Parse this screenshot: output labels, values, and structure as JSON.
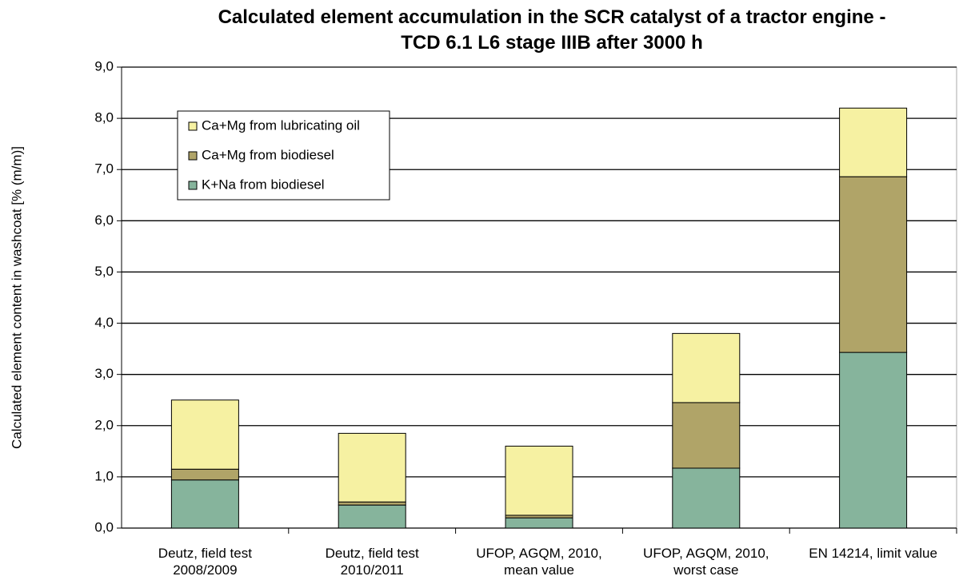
{
  "chart_data": {
    "type": "stacked-bar",
    "title": "Calculated element accumulation in the SCR catalyst of a tractor engine -\nTCD 6.1 L6 stage IIIB after 3000 h",
    "y_label": "Calculated element content in washcoat [% (m/m)]",
    "categories": [
      "Deutz, field test\n2008/2009",
      "Deutz, field test\n2010/2011",
      "UFOP, AGQM, 2010,\nmean value",
      "UFOP, AGQM, 2010,\nworst case",
      "EN 14214, limit value"
    ],
    "series": [
      {
        "name": "K+Na from biodiesel",
        "color": "#86b49c",
        "values": [
          0.94,
          0.45,
          0.2,
          1.17,
          3.43
        ]
      },
      {
        "name": "Ca+Mg from biodiesel",
        "color": "#b0a468",
        "values": [
          0.21,
          0.06,
          0.05,
          1.28,
          3.43
        ]
      },
      {
        "name": "Ca+Mg from lubricating oil",
        "color": "#f6f1a2",
        "values": [
          1.35,
          1.34,
          1.35,
          1.35,
          1.34
        ]
      }
    ],
    "ylim": [
      0,
      9
    ],
    "yticks": [
      {
        "value": 0,
        "label": "0,0"
      },
      {
        "value": 1,
        "label": "1,0"
      },
      {
        "value": 2,
        "label": "2,0"
      },
      {
        "value": 3,
        "label": "3,0"
      },
      {
        "value": 4,
        "label": "4,0"
      },
      {
        "value": 5,
        "label": "5,0"
      },
      {
        "value": 6,
        "label": "6,0"
      },
      {
        "value": 7,
        "label": "7,0"
      },
      {
        "value": 8,
        "label": "8,0"
      },
      {
        "value": 9,
        "label": "9,0"
      }
    ],
    "grid": true
  }
}
